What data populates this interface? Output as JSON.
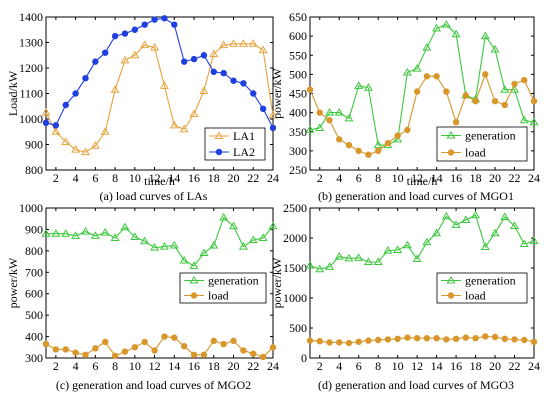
{
  "colors": {
    "la1": "#E8A33D",
    "la2": "#1F3FE0",
    "generation": "#3CC83C",
    "load": "#D9962B"
  },
  "chart_data": [
    {
      "type": "line",
      "caption": "(a) load curves of LAs",
      "xlabel": "time/h",
      "ylabel": "Load/kW",
      "xlim": [
        1,
        24
      ],
      "ylim": [
        800,
        1400
      ],
      "xticks": [
        2,
        4,
        6,
        8,
        10,
        12,
        14,
        16,
        18,
        20,
        22,
        24
      ],
      "yticks": [
        800,
        900,
        1000,
        1100,
        1200,
        1300,
        1400
      ],
      "legend_position": "bottom-right",
      "x": [
        1,
        2,
        3,
        4,
        5,
        6,
        7,
        8,
        9,
        10,
        11,
        12,
        13,
        14,
        15,
        16,
        17,
        18,
        19,
        20,
        21,
        22,
        23,
        24
      ],
      "series": [
        {
          "name": "LA1",
          "color_key": "la1",
          "marker": "triangle",
          "values": [
            1025,
            950,
            910,
            880,
            870,
            895,
            950,
            1115,
            1230,
            1250,
            1290,
            1280,
            1130,
            975,
            960,
            1020,
            1110,
            1255,
            1290,
            1295,
            1295,
            1295,
            1270,
            1015
          ]
        },
        {
          "name": "LA2",
          "color_key": "la2",
          "marker": "circle",
          "values": [
            985,
            975,
            1055,
            1100,
            1160,
            1225,
            1260,
            1325,
            1335,
            1350,
            1370,
            1390,
            1395,
            1370,
            1225,
            1235,
            1250,
            1185,
            1180,
            1150,
            1140,
            1100,
            1040,
            965
          ]
        }
      ]
    },
    {
      "type": "line",
      "caption": "(b) generation and load curves of MGO1",
      "xlabel": "time/h",
      "ylabel": "power/kW",
      "xlim": [
        1,
        24
      ],
      "ylim": [
        250,
        650
      ],
      "xticks": [
        2,
        4,
        6,
        8,
        10,
        12,
        14,
        16,
        18,
        20,
        22,
        24
      ],
      "yticks": [
        250,
        300,
        350,
        400,
        450,
        500,
        550,
        600,
        650
      ],
      "legend_position": "bottom-right",
      "x": [
        1,
        2,
        3,
        4,
        5,
        6,
        7,
        8,
        9,
        10,
        11,
        12,
        13,
        14,
        15,
        16,
        17,
        18,
        19,
        20,
        21,
        22,
        23,
        24
      ],
      "series": [
        {
          "name": "generation",
          "color_key": "generation",
          "marker": "triangle",
          "values": [
            355,
            360,
            400,
            400,
            385,
            470,
            465,
            315,
            315,
            330,
            505,
            515,
            570,
            620,
            630,
            605,
            445,
            435,
            600,
            565,
            460,
            460,
            380,
            375
          ]
        },
        {
          "name": "load",
          "color_key": "load",
          "marker": "circle",
          "values": [
            460,
            400,
            380,
            330,
            315,
            300,
            290,
            300,
            320,
            340,
            355,
            455,
            495,
            495,
            455,
            375,
            445,
            430,
            500,
            430,
            420,
            475,
            485,
            430
          ]
        }
      ]
    },
    {
      "type": "line",
      "caption": "(c) generation and load curves of MGO2",
      "xlabel": "",
      "ylabel": "power/kW",
      "xlim": [
        1,
        24
      ],
      "ylim": [
        300,
        1000
      ],
      "xticks": [
        2,
        4,
        6,
        8,
        10,
        12,
        14,
        16,
        18,
        20,
        22,
        24
      ],
      "yticks": [
        300,
        400,
        500,
        600,
        700,
        800,
        900,
        1000
      ],
      "legend_position": "middle-right",
      "x": [
        1,
        2,
        3,
        4,
        5,
        6,
        7,
        8,
        9,
        10,
        11,
        12,
        13,
        14,
        15,
        16,
        17,
        18,
        19,
        20,
        21,
        22,
        23,
        24
      ],
      "series": [
        {
          "name": "generation",
          "color_key": "generation",
          "marker": "triangle",
          "values": [
            880,
            880,
            880,
            870,
            890,
            870,
            885,
            860,
            910,
            865,
            845,
            815,
            820,
            825,
            755,
            730,
            790,
            825,
            955,
            915,
            820,
            850,
            860,
            915
          ]
        },
        {
          "name": "load",
          "color_key": "load",
          "marker": "circle",
          "values": [
            365,
            340,
            340,
            325,
            315,
            345,
            375,
            310,
            330,
            350,
            375,
            335,
            400,
            395,
            355,
            315,
            315,
            380,
            365,
            380,
            335,
            320,
            305,
            350
          ]
        }
      ]
    },
    {
      "type": "line",
      "caption": "(d) generation and load curves of MGO3",
      "xlabel": "",
      "ylabel": "power/kW",
      "xlim": [
        1,
        24
      ],
      "ylim": [
        0,
        2500
      ],
      "xticks": [
        2,
        4,
        6,
        8,
        10,
        12,
        14,
        16,
        18,
        20,
        22,
        24
      ],
      "yticks": [
        0,
        500,
        1000,
        1500,
        2000,
        2500
      ],
      "legend_position": "middle-right",
      "x": [
        1,
        2,
        3,
        4,
        5,
        6,
        7,
        8,
        9,
        10,
        11,
        12,
        13,
        14,
        15,
        16,
        17,
        18,
        19,
        20,
        21,
        22,
        23,
        24
      ],
      "series": [
        {
          "name": "generation",
          "color_key": "generation",
          "marker": "triangle",
          "values": [
            1540,
            1480,
            1520,
            1690,
            1660,
            1670,
            1600,
            1600,
            1790,
            1800,
            1880,
            1650,
            1930,
            2080,
            2360,
            2220,
            2300,
            2380,
            1850,
            2080,
            2350,
            2200,
            1900,
            1950
          ]
        },
        {
          "name": "load",
          "color_key": "load",
          "marker": "circle",
          "values": [
            290,
            280,
            260,
            260,
            250,
            270,
            290,
            300,
            310,
            320,
            340,
            330,
            330,
            330,
            310,
            320,
            340,
            330,
            360,
            350,
            320,
            310,
            300,
            270
          ]
        }
      ]
    }
  ]
}
